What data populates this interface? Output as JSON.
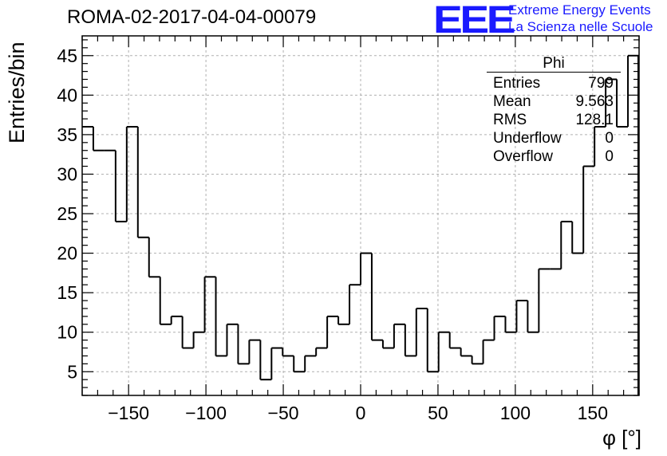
{
  "title": "ROMA-02-2017-04-04-00079",
  "logo": {
    "mark": "EEE",
    "line1": "Extreme Energy Events",
    "line2": "La Scienza nelle Scuole",
    "color": "#1a1aff"
  },
  "stats": {
    "title": "Phi",
    "rows": [
      {
        "label": "Entries",
        "value": "799"
      },
      {
        "label": "Mean",
        "value": "9.563"
      },
      {
        "label": "RMS",
        "value": "128.1"
      },
      {
        "label": "Underflow",
        "value": "0"
      },
      {
        "label": "Overflow",
        "value": "0"
      }
    ]
  },
  "chart_data": {
    "type": "histogram",
    "xlabel": "φ [°]",
    "ylabel": "Entries/bin",
    "xlim": [
      -180,
      180
    ],
    "ylim": [
      2,
      47.5
    ],
    "bin_width": 7.2,
    "x_ticks": [
      -150,
      -100,
      -50,
      0,
      50,
      100,
      150
    ],
    "x_tick_labels": [
      "−150",
      "−100",
      "−50",
      "0",
      "50",
      "100",
      "150"
    ],
    "y_ticks": [
      5,
      10,
      15,
      20,
      25,
      30,
      35,
      40,
      45
    ],
    "y_tick_labels": [
      "5",
      "10",
      "15",
      "20",
      "25",
      "30",
      "35",
      "40",
      "45"
    ],
    "grid": true,
    "values": [
      36,
      33,
      33,
      24,
      36,
      22,
      17,
      11,
      12,
      8,
      10,
      17,
      7,
      11,
      6,
      9,
      4,
      8,
      7,
      5,
      7,
      8,
      12,
      11,
      16,
      20,
      9,
      8,
      11,
      7,
      13,
      5,
      10,
      8,
      7,
      6,
      9,
      12,
      10,
      14,
      10,
      18,
      18,
      24,
      20,
      31,
      36,
      42,
      36,
      45
    ]
  }
}
